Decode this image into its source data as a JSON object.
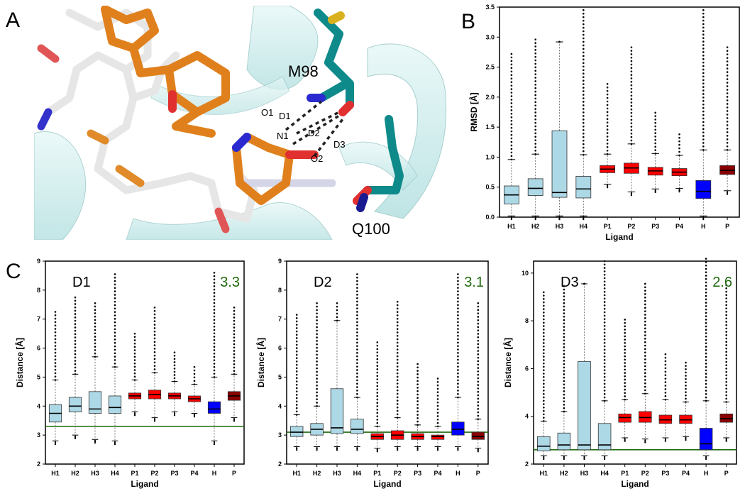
{
  "panels": {
    "A": {
      "letter": "A",
      "residues": [
        "M98",
        "Q100"
      ],
      "atoms": [
        "O1",
        "N1",
        "O2"
      ],
      "distances": [
        "D1",
        "D2",
        "D3"
      ]
    },
    "B": {
      "letter": "B"
    },
    "C": {
      "letter": "C"
    }
  },
  "colors": {
    "H_light": "#add8e6",
    "H_agg": "#0000ff",
    "P_light": "#ff0000",
    "P_agg": "#8b0000",
    "threshold": "#1f6a0e",
    "carbon_ligand": "#e0801c",
    "carbon_protein": "#0e8a8a",
    "cartoon": "#cfeeee"
  },
  "chart_data": [
    {
      "id": "B",
      "type": "box",
      "title": "",
      "xlabel": "Ligand",
      "ylabel": "RMSD [Å]",
      "ylim": [
        0,
        3.5
      ],
      "yticks": [
        "0.0",
        "0.5",
        "1.0",
        "1.5",
        "2.0",
        "2.5",
        "3.0",
        "3.5"
      ],
      "categories": [
        "H1",
        "H2",
        "H3",
        "H4",
        "P1",
        "P2",
        "P3",
        "P4",
        "H",
        "P"
      ],
      "boxes": [
        {
          "q1": 0.22,
          "median": 0.37,
          "q3": 0.52,
          "wlo": 0.02,
          "whi": 0.96,
          "max": 2.72,
          "color": "#add8e6"
        },
        {
          "q1": 0.36,
          "median": 0.48,
          "q3": 0.64,
          "wlo": 0.02,
          "whi": 1.05,
          "max": 2.96,
          "color": "#add8e6"
        },
        {
          "q1": 0.33,
          "median": 0.41,
          "q3": 1.44,
          "wlo": 0.02,
          "whi": 2.92,
          "max": 2.92,
          "color": "#add8e6"
        },
        {
          "q1": 0.32,
          "median": 0.47,
          "q3": 0.68,
          "wlo": 0.02,
          "whi": 1.04,
          "max": 3.45,
          "color": "#add8e6"
        },
        {
          "q1": 0.74,
          "median": 0.8,
          "q3": 0.86,
          "wlo": 0.55,
          "whi": 1.05,
          "max": 2.22,
          "color": "#ff0000"
        },
        {
          "q1": 0.73,
          "median": 0.82,
          "q3": 0.9,
          "wlo": 0.42,
          "whi": 1.22,
          "max": 2.83,
          "color": "#ff0000"
        },
        {
          "q1": 0.7,
          "median": 0.77,
          "q3": 0.83,
          "wlo": 0.47,
          "whi": 1.06,
          "max": 1.74,
          "color": "#ff0000"
        },
        {
          "q1": 0.69,
          "median": 0.75,
          "q3": 0.81,
          "wlo": 0.48,
          "whi": 1.03,
          "max": 1.38,
          "color": "#ff0000"
        },
        {
          "q1": 0.31,
          "median": 0.43,
          "q3": 0.61,
          "wlo": 0.02,
          "whi": 1.12,
          "max": 3.45,
          "color": "#0000ff"
        },
        {
          "q1": 0.71,
          "median": 0.78,
          "q3": 0.86,
          "wlo": 0.44,
          "whi": 1.12,
          "max": 2.83,
          "color": "#8b0000"
        }
      ]
    },
    {
      "id": "C1",
      "type": "box",
      "title": "D1",
      "threshold_label": "3.3",
      "threshold": 3.3,
      "xlabel": "Ligand",
      "ylabel": "Distance [Å]",
      "ylim": [
        2,
        9
      ],
      "yticks": [
        "2",
        "3",
        "4",
        "5",
        "6",
        "7",
        "8",
        "9"
      ],
      "categories": [
        "H1",
        "H2",
        "H3",
        "H4",
        "P1",
        "P2",
        "P3",
        "P4",
        "H",
        "P"
      ],
      "boxes": [
        {
          "q1": 3.45,
          "median": 3.75,
          "q3": 4.05,
          "wlo": 2.8,
          "whi": 4.9,
          "max": 7.25,
          "color": "#add8e6"
        },
        {
          "q1": 3.8,
          "median": 4.0,
          "q3": 4.3,
          "wlo": 3.0,
          "whi": 5.1,
          "max": 7.75,
          "color": "#add8e6"
        },
        {
          "q1": 3.75,
          "median": 3.9,
          "q3": 4.5,
          "wlo": 2.85,
          "whi": 5.7,
          "max": 7.55,
          "color": "#add8e6"
        },
        {
          "q1": 3.75,
          "median": 3.95,
          "q3": 4.35,
          "wlo": 2.8,
          "whi": 5.35,
          "max": 8.55,
          "color": "#add8e6"
        },
        {
          "q1": 4.25,
          "median": 4.35,
          "q3": 4.45,
          "wlo": 3.8,
          "whi": 4.9,
          "max": 6.5,
          "color": "#ff0000"
        },
        {
          "q1": 4.25,
          "median": 4.4,
          "q3": 4.55,
          "wlo": 3.6,
          "whi": 5.15,
          "max": 7.4,
          "color": "#ff0000"
        },
        {
          "q1": 4.25,
          "median": 4.35,
          "q3": 4.45,
          "wlo": 3.8,
          "whi": 4.85,
          "max": 5.85,
          "color": "#ff0000"
        },
        {
          "q1": 4.15,
          "median": 4.25,
          "q3": 4.35,
          "wlo": 3.75,
          "whi": 4.75,
          "max": 5.35,
          "color": "#ff0000"
        },
        {
          "q1": 3.75,
          "median": 3.9,
          "q3": 4.15,
          "wlo": 2.8,
          "whi": 5.0,
          "max": 8.6,
          "color": "#0000ff"
        },
        {
          "q1": 4.2,
          "median": 4.35,
          "q3": 4.5,
          "wlo": 3.6,
          "whi": 5.1,
          "max": 7.4,
          "color": "#8b0000"
        }
      ]
    },
    {
      "id": "C2",
      "type": "box",
      "title": "D2",
      "threshold_label": "3.1",
      "threshold": 3.1,
      "xlabel": "Ligand",
      "ylabel": "Distance [Å]",
      "ylim": [
        2,
        9
      ],
      "yticks": [
        "2",
        "3",
        "4",
        "5",
        "6",
        "7",
        "8",
        "9"
      ],
      "categories": [
        "H1",
        "H2",
        "H3",
        "H4",
        "P1",
        "P2",
        "P3",
        "P4",
        "H",
        "P"
      ],
      "boxes": [
        {
          "q1": 2.95,
          "median": 3.1,
          "q3": 3.3,
          "wlo": 2.6,
          "whi": 3.7,
          "max": 7.15,
          "color": "#add8e6"
        },
        {
          "q1": 3.0,
          "median": 3.2,
          "q3": 3.4,
          "wlo": 2.6,
          "whi": 4.0,
          "max": 7.55,
          "color": "#add8e6"
        },
        {
          "q1": 3.05,
          "median": 3.25,
          "q3": 4.6,
          "wlo": 2.6,
          "whi": 6.95,
          "max": 7.55,
          "color": "#add8e6"
        },
        {
          "q1": 3.05,
          "median": 3.2,
          "q3": 3.55,
          "wlo": 2.6,
          "whi": 4.3,
          "max": 8.55,
          "color": "#add8e6"
        },
        {
          "q1": 2.85,
          "median": 2.95,
          "q3": 3.05,
          "wlo": 2.55,
          "whi": 3.3,
          "max": 6.2,
          "color": "#ff0000"
        },
        {
          "q1": 2.85,
          "median": 3.0,
          "q3": 3.15,
          "wlo": 2.6,
          "whi": 3.6,
          "max": 7.6,
          "color": "#ff0000"
        },
        {
          "q1": 2.85,
          "median": 2.95,
          "q3": 3.05,
          "wlo": 2.6,
          "whi": 3.35,
          "max": 5.45,
          "color": "#ff0000"
        },
        {
          "q1": 2.85,
          "median": 2.95,
          "q3": 3.0,
          "wlo": 2.6,
          "whi": 3.3,
          "max": 4.95,
          "color": "#ff0000"
        },
        {
          "q1": 3.0,
          "median": 3.2,
          "q3": 3.45,
          "wlo": 2.6,
          "whi": 4.3,
          "max": 8.55,
          "color": "#0000ff"
        },
        {
          "q1": 2.85,
          "median": 2.95,
          "q3": 3.1,
          "wlo": 2.55,
          "whi": 3.55,
          "max": 7.55,
          "color": "#8b0000"
        }
      ]
    },
    {
      "id": "C3",
      "type": "box",
      "title": "D3",
      "threshold_label": "2.6",
      "threshold": 2.6,
      "xlabel": "Ligand",
      "ylabel": "Distance [Å]",
      "ylim": [
        2,
        10.5
      ],
      "yticks": [
        "2",
        "4",
        "6",
        "8",
        "10"
      ],
      "categories": [
        "H1",
        "H2",
        "H3",
        "H4",
        "P1",
        "P2",
        "P3",
        "P4",
        "H",
        "P"
      ],
      "boxes": [
        {
          "q1": 2.55,
          "median": 2.75,
          "q3": 3.15,
          "wlo": 2.35,
          "whi": 3.8,
          "max": 9.2,
          "color": "#add8e6"
        },
        {
          "q1": 2.6,
          "median": 2.8,
          "q3": 3.3,
          "wlo": 2.35,
          "whi": 4.2,
          "max": 9.45,
          "color": "#add8e6"
        },
        {
          "q1": 2.6,
          "median": 2.8,
          "q3": 6.3,
          "wlo": 2.35,
          "whi": 9.55,
          "max": 9.55,
          "color": "#add8e6"
        },
        {
          "q1": 2.6,
          "median": 2.8,
          "q3": 3.7,
          "wlo": 2.35,
          "whi": 4.65,
          "max": 10.5,
          "color": "#add8e6"
        },
        {
          "q1": 3.75,
          "median": 3.95,
          "q3": 4.1,
          "wlo": 3.1,
          "whi": 4.7,
          "max": 8.05,
          "color": "#ff0000"
        },
        {
          "q1": 3.75,
          "median": 3.95,
          "q3": 4.2,
          "wlo": 3.05,
          "whi": 4.95,
          "max": 9.55,
          "color": "#ff0000"
        },
        {
          "q1": 3.7,
          "median": 3.85,
          "q3": 4.05,
          "wlo": 3.1,
          "whi": 4.7,
          "max": 6.6,
          "color": "#ff0000"
        },
        {
          "q1": 3.7,
          "median": 3.85,
          "q3": 4.05,
          "wlo": 3.15,
          "whi": 4.6,
          "max": 6.25,
          "color": "#ff0000"
        },
        {
          "q1": 2.6,
          "median": 2.85,
          "q3": 3.5,
          "wlo": 2.35,
          "whi": 4.65,
          "max": 10.6,
          "color": "#0000ff"
        },
        {
          "q1": 3.75,
          "median": 3.9,
          "q3": 4.1,
          "wlo": 3.1,
          "whi": 4.6,
          "max": 9.5,
          "color": "#8b0000"
        }
      ]
    }
  ]
}
